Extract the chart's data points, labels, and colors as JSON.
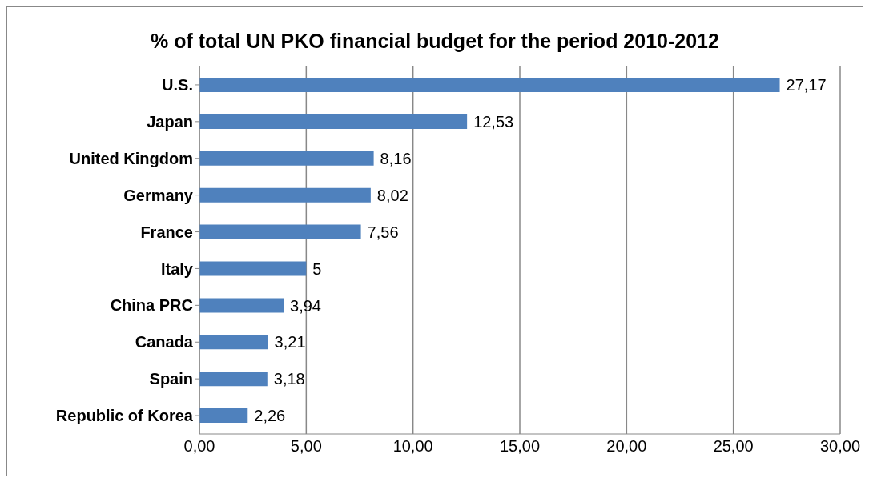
{
  "chart_data": {
    "type": "bar",
    "orientation": "horizontal",
    "title": "% of total UN PKO financial budget for the period 2010-2012",
    "categories": [
      "U.S.",
      "Japan",
      "United Kingdom",
      "Germany",
      "France",
      "Italy",
      "China PRC",
      "Canada",
      "Spain",
      "Republic of Korea"
    ],
    "values": [
      27.17,
      12.53,
      8.16,
      8.02,
      7.56,
      5,
      3.94,
      3.21,
      3.18,
      2.26
    ],
    "value_labels": [
      "27,17",
      "12,53",
      "8,16",
      "8,02",
      "7,56",
      "5",
      "3,94",
      "3,21",
      "3,18",
      "2,26"
    ],
    "color": "#4f81bd",
    "xlim": [
      0,
      30
    ],
    "xticks": [
      {
        "value": 0,
        "label": "0,00"
      },
      {
        "value": 5,
        "label": "5,00"
      },
      {
        "value": 10,
        "label": "10,00"
      },
      {
        "value": 15,
        "label": "15,00"
      },
      {
        "value": 20,
        "label": "20,00"
      },
      {
        "value": 25,
        "label": "25,00"
      },
      {
        "value": 30,
        "label": "30,00"
      }
    ],
    "grid": "x",
    "legend": false
  }
}
